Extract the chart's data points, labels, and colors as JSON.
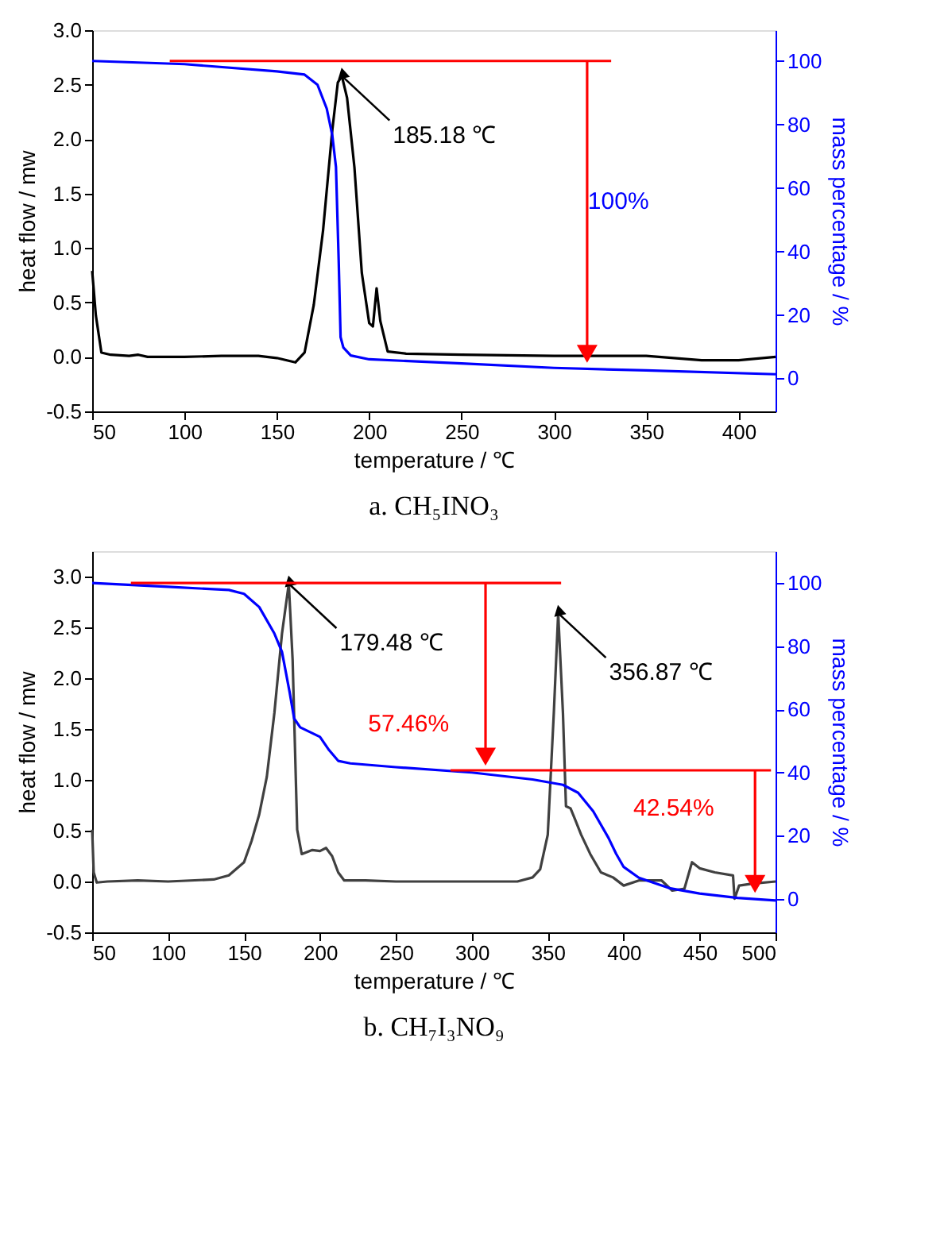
{
  "chart_data": [
    {
      "type": "line",
      "title": "a.    CH₅INO₃",
      "xlabel": "temperature /  ℃",
      "ylabel": "heat flow / mw",
      "y2label": "mass percentage / %",
      "xlim": [
        50,
        420
      ],
      "xticks": [
        50,
        100,
        150,
        200,
        250,
        300,
        350,
        400
      ],
      "ylim": [
        -0.5,
        3.0
      ],
      "yticks": [
        -0.5,
        {
          "value": 0,
          "label": "0.0"
        },
        0.5,
        {
          "value": 1,
          "label": "1.0"
        },
        1.5,
        {
          "value": 2,
          "label": "2.0"
        },
        2.5,
        {
          "value": 3,
          "label": "3.0"
        }
      ],
      "y2lim": [
        -10.4,
        109.7
      ],
      "y2ticks": [
        0,
        20,
        40,
        60,
        80,
        100
      ],
      "series": [
        {
          "color": "#000000",
          "x": [
            50,
            52,
            55,
            60,
            70,
            75,
            80,
            100,
            120,
            140,
            150,
            160,
            165,
            170,
            175,
            180,
            183,
            185.18,
            188,
            192,
            196,
            200,
            202,
            204,
            206,
            210,
            220,
            250,
            300,
            330,
            350,
            380,
            400,
            420
          ],
          "values": [
            0.79,
            0.38,
            0.04,
            0.02,
            0.01,
            0.02,
            0.0,
            0.0,
            0.01,
            0.01,
            -0.01,
            -0.05,
            0.04,
            0.48,
            1.16,
            2.08,
            2.52,
            2.58,
            2.38,
            1.74,
            0.77,
            0.31,
            0.28,
            0.63,
            0.33,
            0.05,
            0.03,
            0.02,
            0.01,
            0.01,
            0.01,
            -0.03,
            -0.03,
            0.0
          ]
        },
        {
          "color": "#0000ff",
          "axis": "y2",
          "x": [
            50,
            100,
            150,
            165,
            172,
            177,
            180,
            182,
            183.5,
            184.5,
            186,
            190,
            200,
            250,
            300,
            350,
            420
          ],
          "values": [
            100,
            99,
            96.7,
            95.7,
            92.5,
            85,
            76.6,
            66.6,
            36.5,
            13,
            9.7,
            7.2,
            6,
            4.7,
            3.3,
            2.5,
            1.3
          ]
        },
        {
          "color": "#ff0000",
          "axis": "y2",
          "x": [
            92,
            331
          ],
          "values": [
            100,
            100
          ]
        }
      ],
      "annotations": [
        {
          "text": "185.18 ℃",
          "x": 185.18,
          "y": 2.58
        },
        "100%"
      ]
    },
    {
      "type": "line",
      "title": "b.    CH₇I₃NO₉",
      "xlabel": "temperature / ℃",
      "ylabel": "heat flow / mw",
      "y2label": "mass percentage / %",
      "xlim": [
        50,
        500
      ],
      "xticks": [
        50,
        100,
        150,
        200,
        250,
        300,
        350,
        400,
        450,
        500
      ],
      "ylim": [
        -0.5,
        3.25
      ],
      "yticks": [
        -0.5,
        {
          "value": 0,
          "label": "0.0"
        },
        0.5,
        {
          "value": 1,
          "label": "1.0"
        },
        1.5,
        {
          "value": 2,
          "label": "2.0"
        },
        2.5,
        {
          "value": 3,
          "label": "3.0"
        }
      ],
      "y2lim": [
        -10.6,
        110.1
      ],
      "y2ticks": [
        0,
        20,
        40,
        60,
        80,
        100
      ],
      "series": [
        {
          "color": "#404040",
          "x": [
            50,
            51,
            53,
            60,
            80,
            100,
            130,
            140,
            150,
            155,
            160,
            165,
            170,
            175,
            179.48,
            182,
            185,
            188,
            195,
            200,
            204,
            208,
            212,
            216,
            230,
            250,
            300,
            330,
            340,
            345,
            350,
            354,
            356.87,
            360,
            362,
            365,
            368,
            372,
            378,
            385,
            393,
            400,
            410,
            425,
            432,
            440,
            445,
            450,
            460,
            472,
            473,
            476,
            485,
            500
          ],
          "values": [
            0.51,
            0.09,
            -0.01,
            0.0,
            0.01,
            0.0,
            0.02,
            0.06,
            0.19,
            0.4,
            0.66,
            1.03,
            1.66,
            2.44,
            2.93,
            2.18,
            0.51,
            0.27,
            0.31,
            0.3,
            0.33,
            0.25,
            0.09,
            0.01,
            0.01,
            0.0,
            0.0,
            0.0,
            0.04,
            0.12,
            0.46,
            1.66,
            2.64,
            1.66,
            0.74,
            0.72,
            0.61,
            0.46,
            0.27,
            0.09,
            0.04,
            -0.04,
            0.01,
            0.01,
            -0.09,
            -0.07,
            0.19,
            0.13,
            0.09,
            0.06,
            -0.17,
            -0.04,
            -0.02,
            0.0
          ]
        },
        {
          "color": "#0000ff",
          "axis": "y2",
          "x": [
            50,
            100,
            140,
            150,
            160,
            170,
            175,
            180,
            183,
            187,
            200,
            206,
            212,
            220,
            250,
            300,
            340,
            360,
            370,
            380,
            390,
            395,
            400,
            410,
            430,
            450,
            475,
            500
          ],
          "values": [
            100,
            98.8,
            97.8,
            96.6,
            92.4,
            84,
            78.2,
            65.5,
            57.1,
            54.3,
            51.3,
            47.1,
            43.7,
            42.9,
            41.7,
            40,
            37.8,
            36.1,
            33.6,
            27.7,
            19.3,
            14.3,
            10.1,
            6.7,
            3.4,
            1.7,
            0.3,
            -0.5
          ]
        },
        {
          "color": "#ff0000",
          "axis": "y2",
          "x": [
            75.5,
            358.8
          ],
          "values": [
            100,
            100
          ]
        },
        {
          "color": "#ff0000",
          "axis": "y2",
          "x": [
            286,
            497
          ],
          "values": [
            40.7,
            40.7
          ]
        }
      ],
      "annotations": [
        {
          "text": "179.48 ℃",
          "x": 179.48,
          "y": 2.93
        },
        {
          "text": "356.87 ℃",
          "x": 356.87,
          "y": 2.64
        },
        "57.46%",
        "42.54%"
      ]
    }
  ]
}
